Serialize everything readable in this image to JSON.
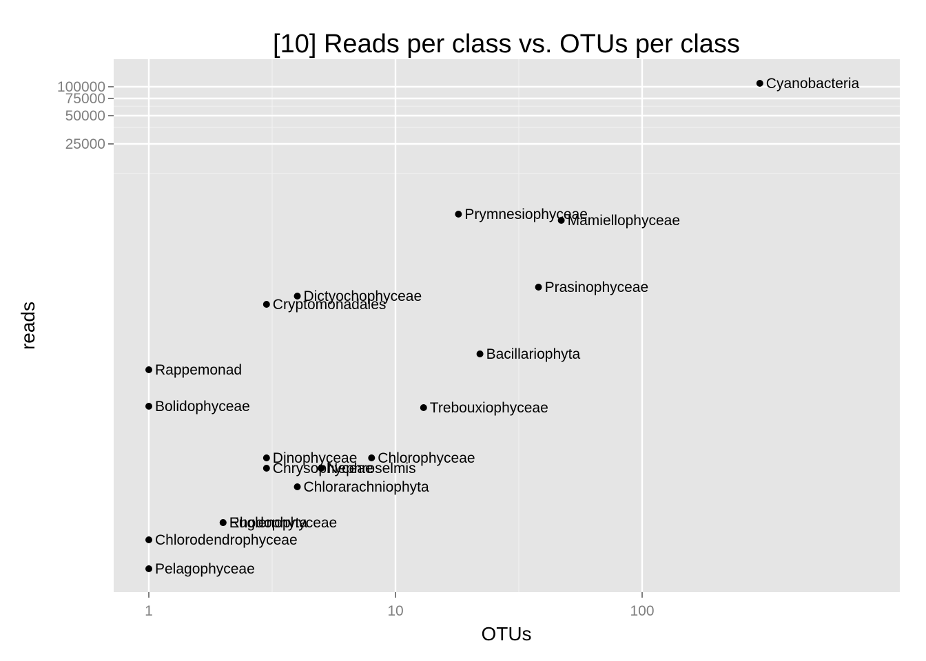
{
  "chart_data": {
    "type": "scatter",
    "title": "[10] Reads per class vs. OTUs per class",
    "xlabel": "OTUs",
    "ylabel": "reads",
    "x_scale": "log10",
    "y_scale": "custom-compressed",
    "xlim": [
      0.7,
      900
    ],
    "x_ticks": [
      1,
      10,
      100
    ],
    "x_tick_labels": [
      "1",
      "10",
      "100"
    ],
    "y_ticks": [
      25000,
      50000,
      75000,
      100000
    ],
    "y_tick_labels": [
      "25000",
      "50000",
      "75000",
      "100000"
    ],
    "grid": true,
    "legend": "none",
    "panel_background": "#e5e5e5",
    "point_color": "#000000",
    "points": [
      {
        "label": "Cyanobacteria",
        "x": 300,
        "y": 105000
      },
      {
        "label": "Prymnesiophyceae",
        "x": 18,
        "y": 4700
      },
      {
        "label": "Mamiellophyceae",
        "x": 47,
        "y": 4500
      },
      {
        "label": "Prasinophyceae",
        "x": 38,
        "y": 2600
      },
      {
        "label": "Dictyochophyceae",
        "x": 4,
        "y": 2250
      },
      {
        "label": "Cryptomonadales",
        "x": 3,
        "y": 2100
      },
      {
        "label": "Bacillariophyta",
        "x": 22,
        "y": 1400
      },
      {
        "label": "Rappemonad",
        "x": 1,
        "y": 1150
      },
      {
        "label": "Bolidophyceae",
        "x": 1,
        "y": 850
      },
      {
        "label": "Trebouxiophyceae",
        "x": 13,
        "y": 840
      },
      {
        "label": "Dinophyceae",
        "x": 3,
        "y": 530
      },
      {
        "label": "Chlorophyceae",
        "x": 8,
        "y": 530
      },
      {
        "label": "Chrysophyceae",
        "x": 3,
        "y": 485
      },
      {
        "label": "Nephroselmis",
        "x": 5,
        "y": 485
      },
      {
        "label": "Chlorarachniophyta",
        "x": 4,
        "y": 410
      },
      {
        "label": "Rhodophyta",
        "x": 2,
        "y": 300
      },
      {
        "label": "Euglenophyceae",
        "x": 2,
        "y": 300
      },
      {
        "label": "Chlorodendrophyceae",
        "x": 1,
        "y": 265
      },
      {
        "label": "Pelagophyceae",
        "x": 1,
        "y": 205
      }
    ]
  }
}
